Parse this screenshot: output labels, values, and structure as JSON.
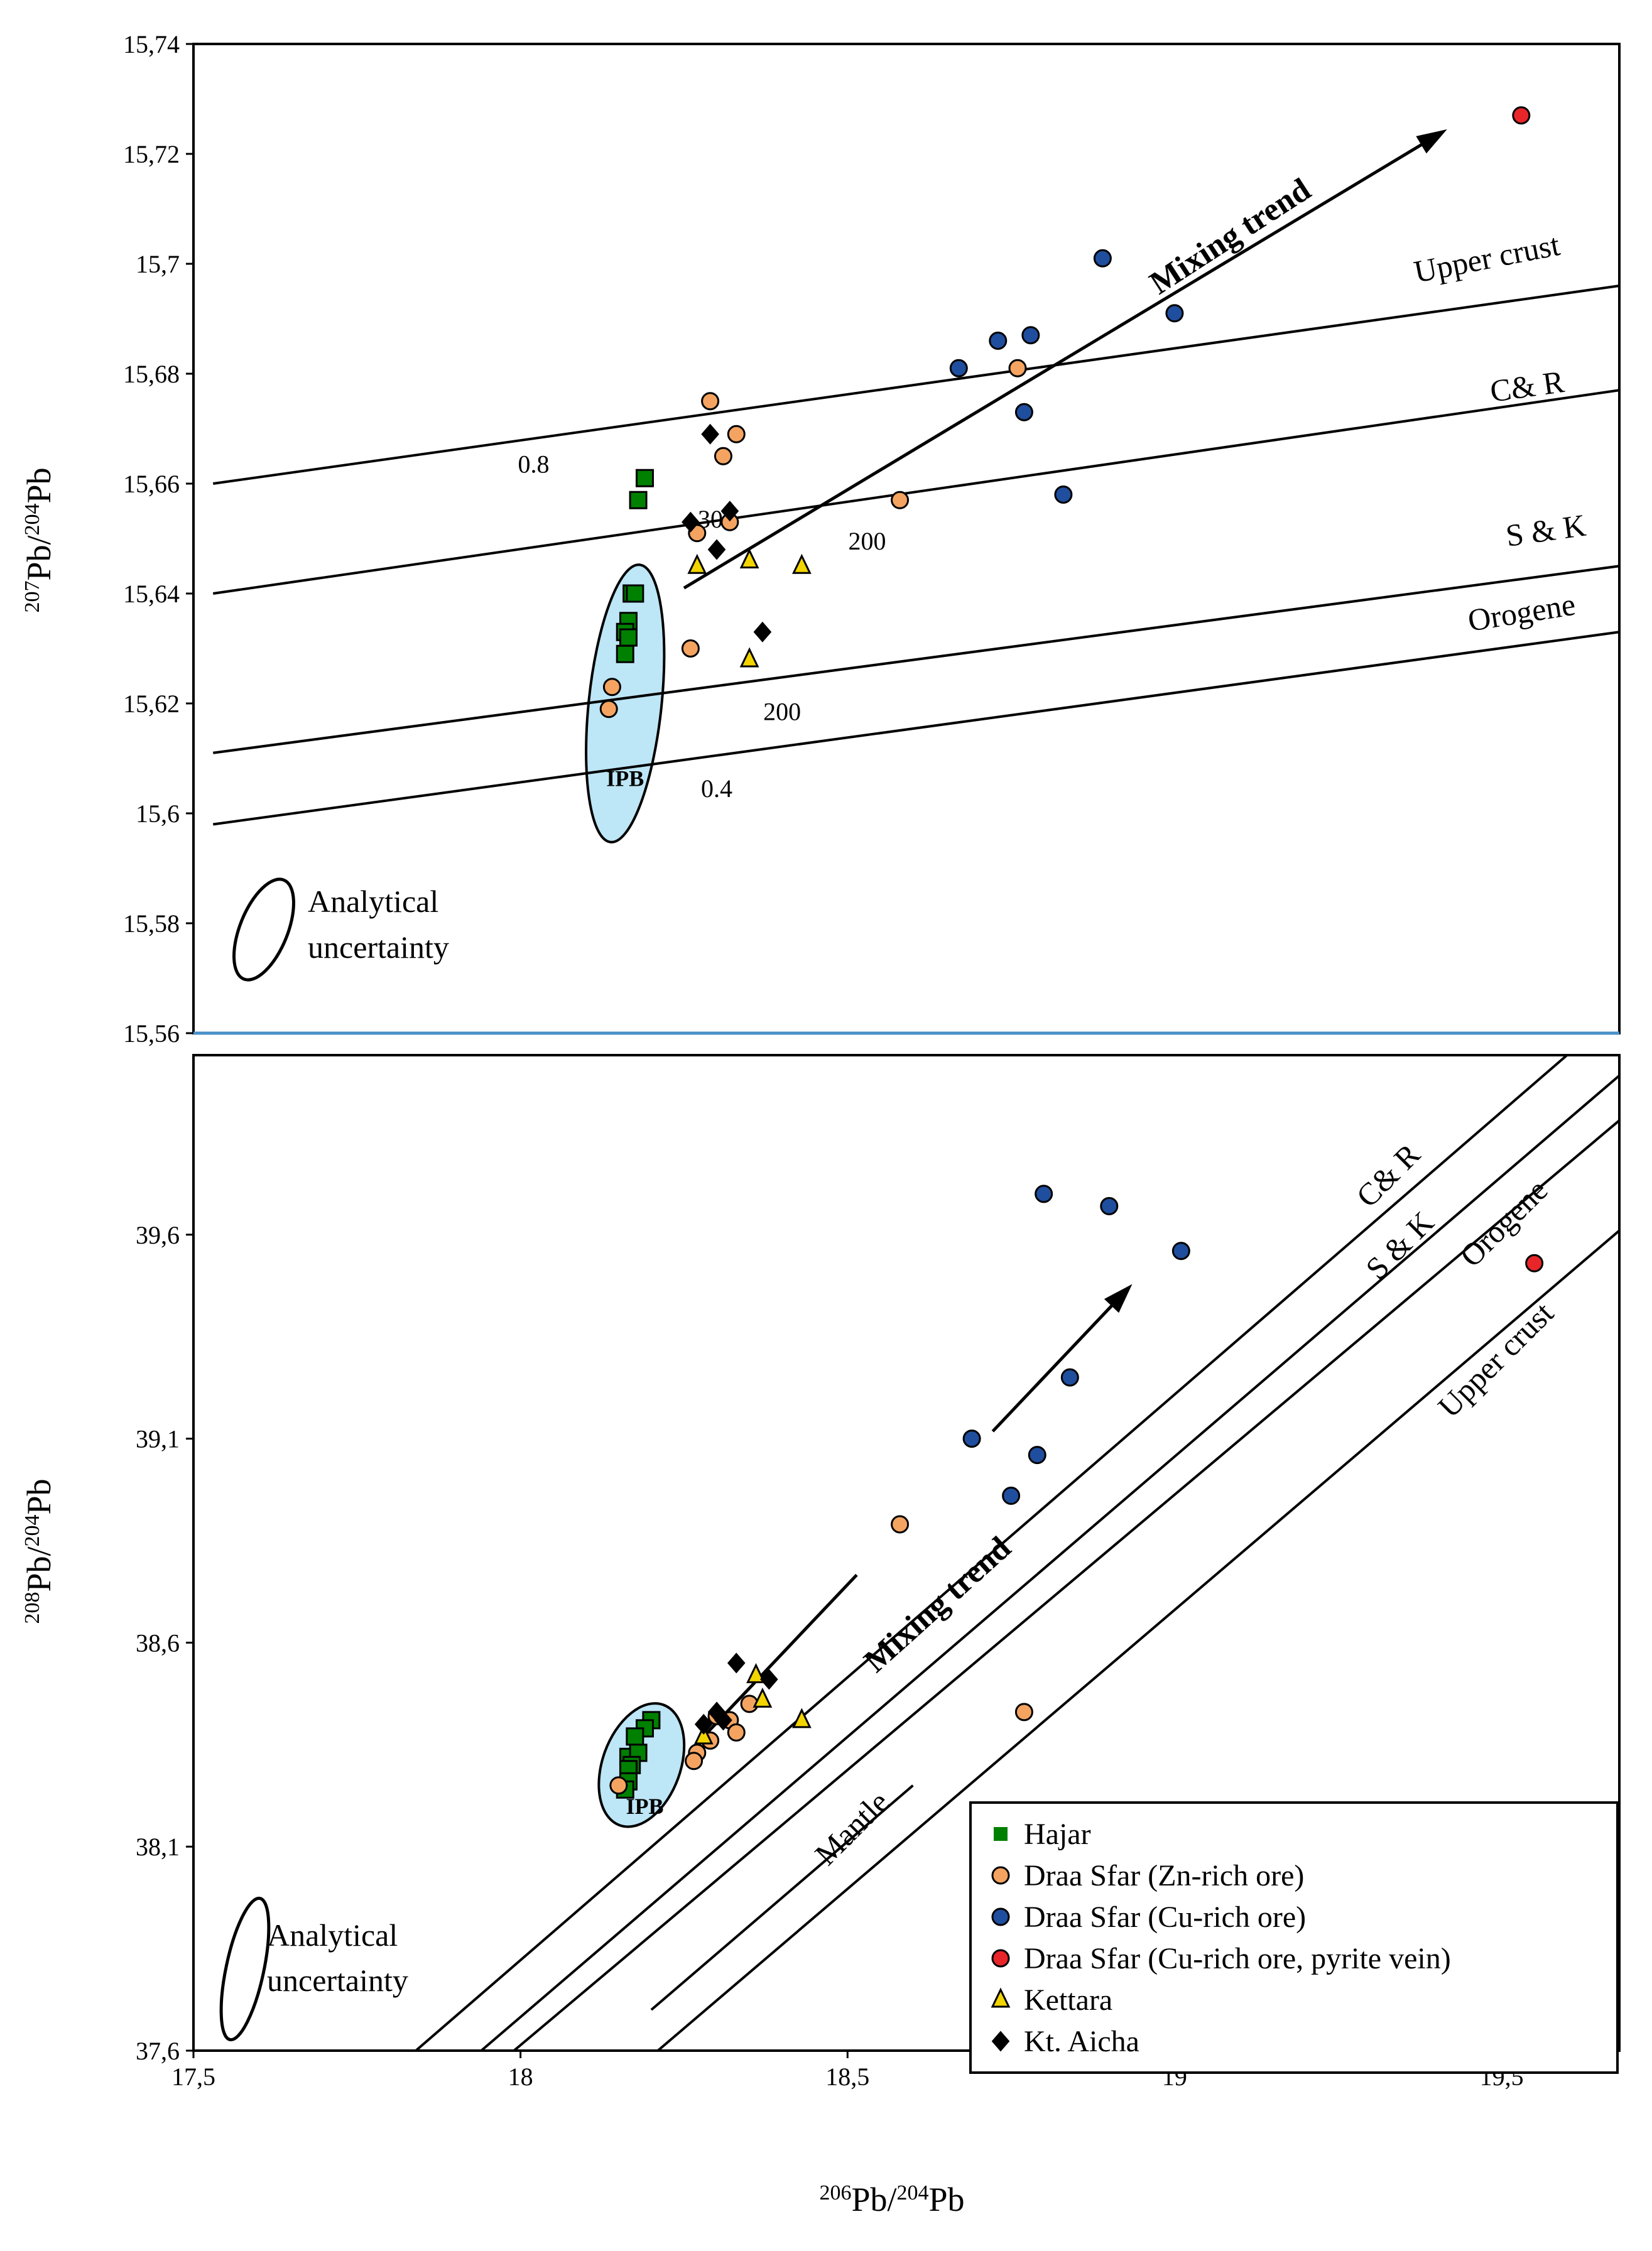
{
  "chart_data": [
    {
      "type": "scatter",
      "title": "",
      "xlabel": "206Pb/204Pb",
      "ylabel": "207Pb/204Pb",
      "xlim": [
        17.5,
        19.68
      ],
      "ylim": [
        15.56,
        15.74
      ],
      "yticks": [
        "15,74",
        "15,72",
        "15,7",
        "15,68",
        "15,66",
        "15,64",
        "15,62",
        "15,6",
        "15,58",
        "15,56"
      ],
      "curves": [
        {
          "name": "Upper crust",
          "x": [
            17.53,
            19.68
          ],
          "y": [
            15.66,
            15.696
          ]
        },
        {
          "name": "C& R",
          "x": [
            17.53,
            19.68
          ],
          "y": [
            15.64,
            15.677
          ]
        },
        {
          "name": "S & K",
          "x": [
            17.53,
            19.68
          ],
          "y": [
            15.611,
            15.645
          ]
        },
        {
          "name": "Orogene",
          "x": [
            17.53,
            19.68
          ],
          "y": [
            15.598,
            15.633
          ]
        }
      ],
      "annotations": [
        {
          "text": "0.8",
          "x": 18.02,
          "y": 15.662
        },
        {
          "text": "300",
          "x": 18.3,
          "y": 15.652
        },
        {
          "text": "200",
          "x": 18.53,
          "y": 15.648
        },
        {
          "text": "200",
          "x": 18.4,
          "y": 15.617
        },
        {
          "text": "0.4",
          "x": 18.3,
          "y": 15.603
        },
        {
          "text": "IPB",
          "x": 18.16,
          "y": 15.605
        }
      ],
      "trend_label": "Mixing trend",
      "uncertainty_label": [
        "Analytical",
        "uncertainty"
      ],
      "series": [
        {
          "name": "Hajar",
          "x": [
            18.18,
            18.19,
            18.17,
            18.175,
            18.165,
            18.16,
            18.165,
            18.16
          ],
          "y": [
            15.657,
            15.661,
            15.64,
            15.64,
            15.635,
            15.633,
            15.632,
            15.629
          ]
        },
        {
          "name": "Draa Sfar (Zn-rich ore)",
          "x": [
            18.29,
            18.33,
            18.31,
            18.76,
            18.27,
            18.32,
            18.58,
            18.26,
            18.14,
            18.135
          ],
          "y": [
            15.675,
            15.669,
            15.665,
            15.681,
            15.651,
            15.653,
            15.657,
            15.63,
            15.623,
            15.619
          ]
        },
        {
          "name": "Draa Sfar (Cu-rich ore)",
          "x": [
            18.89,
            19.0,
            18.73,
            18.78,
            18.67,
            18.77,
            18.83
          ],
          "y": [
            15.701,
            15.691,
            15.686,
            15.687,
            15.681,
            15.673,
            15.658
          ]
        },
        {
          "name": "Draa Sfar (Cu-rich ore, pyrite vein)",
          "x": [
            19.53
          ],
          "y": [
            15.727
          ]
        },
        {
          "name": "Kettara",
          "x": [
            18.27,
            18.35,
            18.43,
            18.35
          ],
          "y": [
            15.645,
            15.646,
            15.645,
            15.628
          ]
        },
        {
          "name": "Kt. Aicha",
          "x": [
            18.29,
            18.26,
            18.32,
            18.3,
            18.37
          ],
          "y": [
            15.669,
            15.653,
            15.655,
            15.648,
            15.633
          ]
        }
      ]
    },
    {
      "type": "scatter",
      "title": "",
      "xlabel": "206Pb/204Pb",
      "ylabel": "208Pb/204Pb",
      "xlim": [
        17.5,
        19.68
      ],
      "ylim": [
        37.6,
        40.04
      ],
      "xticks": [
        "17,5",
        "18",
        "18,5",
        "19",
        "19,5"
      ],
      "yticks": [
        "37,6",
        "38,1",
        "38,6",
        "39,1",
        "39,6"
      ],
      "curves": [
        {
          "name": "C& R",
          "x": [
            17.84,
            19.6
          ],
          "y": [
            37.6,
            40.04
          ]
        },
        {
          "name": "S & K",
          "x": [
            17.94,
            19.68
          ],
          "y": [
            37.6,
            39.99
          ]
        },
        {
          "name": "Orogene",
          "x": [
            17.99,
            19.68
          ],
          "y": [
            37.6,
            39.88
          ]
        },
        {
          "name": "Upper crust",
          "x": [
            18.21,
            19.68
          ],
          "y": [
            37.6,
            39.61
          ]
        }
      ],
      "annotations": [
        {
          "text": "Mantle",
          "x": 18.47,
          "y": 38.05
        },
        {
          "text": "IPB",
          "x": 18.19,
          "y": 38.18
        }
      ],
      "trend_label": "Mixing trend",
      "uncertainty_label": [
        "Analytical",
        "uncertainty"
      ],
      "series": [
        {
          "name": "Hajar",
          "x": [
            18.2,
            18.19,
            18.175,
            18.165,
            18.18,
            18.17,
            18.165,
            18.165,
            18.16
          ],
          "y": [
            38.41,
            38.39,
            38.37,
            38.32,
            38.33,
            38.3,
            38.29,
            38.26,
            38.24
          ]
        },
        {
          "name": "Draa Sfar (Zn-rich ore)",
          "x": [
            18.58,
            18.35,
            18.3,
            18.32,
            18.33,
            18.27,
            18.29,
            18.265,
            18.15,
            18.77
          ],
          "y": [
            38.89,
            38.45,
            38.42,
            38.41,
            38.38,
            38.33,
            38.36,
            38.31,
            38.25,
            38.43
          ]
        },
        {
          "name": "Draa Sfar (Cu-rich ore)",
          "x": [
            18.8,
            18.9,
            19.01,
            18.84,
            18.69,
            18.79,
            18.75
          ],
          "y": [
            39.7,
            39.67,
            39.56,
            39.25,
            39.1,
            39.06,
            38.96
          ]
        },
        {
          "name": "Draa Sfar (Cu-rich ore, pyrite vein)",
          "x": [
            19.55
          ],
          "y": [
            39.53
          ]
        },
        {
          "name": "Kettara",
          "x": [
            18.36,
            18.37,
            18.43,
            18.28
          ],
          "y": [
            38.52,
            38.46,
            38.41,
            38.37
          ]
        },
        {
          "name": "Kt. Aicha",
          "x": [
            18.33,
            18.38,
            18.3,
            18.28,
            18.31
          ],
          "y": [
            38.55,
            38.51,
            38.43,
            38.4,
            38.41
          ]
        }
      ]
    }
  ],
  "legend": [
    {
      "label": "Hajar",
      "color": "#008000",
      "marker": "square"
    },
    {
      "label": "Draa Sfar (Zn-rich ore)",
      "color": "#F4A460",
      "marker": "circle"
    },
    {
      "label": "Draa Sfar (Cu-rich ore)",
      "color": "#1F4E9E",
      "marker": "circle"
    },
    {
      "label": "Draa Sfar (Cu-rich ore, pyrite vein)",
      "color": "#E8262A",
      "marker": "circle"
    },
    {
      "label": "Kettara",
      "color": "#F2D400",
      "marker": "triangle"
    },
    {
      "label": "Kt. Aicha",
      "color": "#000000",
      "marker": "diamond"
    }
  ],
  "colors": {
    "ipb_fill": "#BDE6F6",
    "panel_divider": "#4A90C8",
    "hajar": "#008000",
    "zn": "#F4A460",
    "cu": "#1F4E9E",
    "pyrite": "#E8262A",
    "kettara": "#F2D400",
    "aicha": "#000000"
  }
}
